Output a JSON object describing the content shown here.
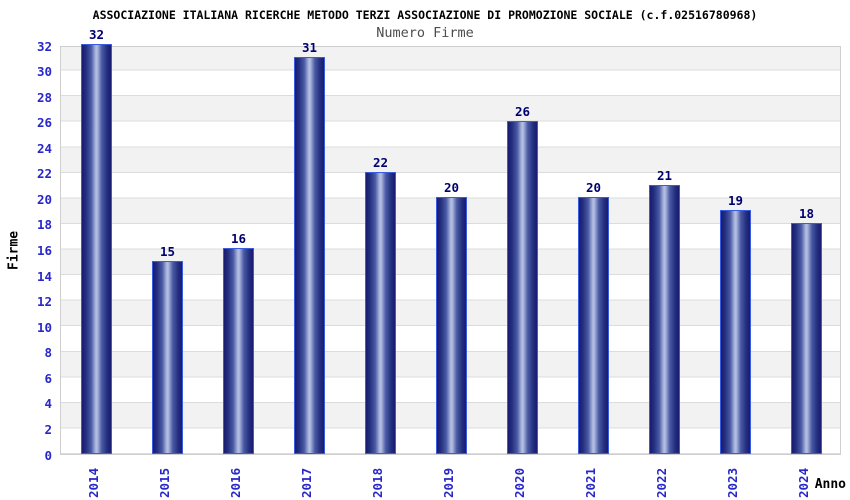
{
  "chart_data": {
    "type": "bar",
    "title": "ASSOCIAZIONE ITALIANA RICERCHE METODO TERZI ASSOCIAZIONE DI PROMOZIONE SOCIALE (c.f.02516780968)",
    "subtitle": "Numero Firme",
    "xlabel": "Anno",
    "ylabel": "Firme",
    "categories": [
      "2014",
      "2015",
      "2016",
      "2017",
      "2018",
      "2019",
      "2020",
      "2021",
      "2022",
      "2023",
      "2024"
    ],
    "values": [
      32,
      15,
      16,
      31,
      22,
      20,
      26,
      20,
      21,
      19,
      18
    ],
    "ylim": [
      0,
      32
    ],
    "ytick_step": 2,
    "grid": true,
    "legend": "none",
    "background_bands": "alternating gray/white every 2 units",
    "colors": {
      "title": "#000000",
      "subtitle": "#4d4d4d",
      "tick_label": "#2828c8",
      "value_label": "#00006e",
      "bar_dark": "#1a1a72",
      "bar_light": "#b2bde2",
      "bar_border": "#3a5ce0",
      "stripe": "#f2f2f2",
      "gridline": "#dcdcdc"
    }
  }
}
